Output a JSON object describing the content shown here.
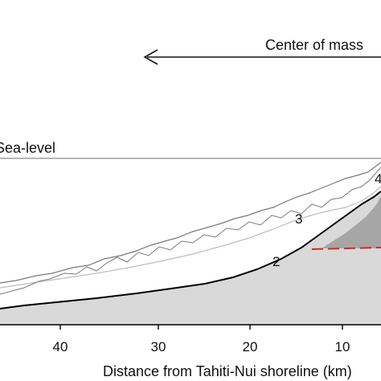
{
  "annotations": {
    "center_of_mass": "Center of mass",
    "sea_level": "Sea-level",
    "profile_2": "2",
    "profile_3": "3",
    "profile_4": "4"
  },
  "x_axis": {
    "label": "Distance from Tahiti-Nui shoreline (km)",
    "reversed": true,
    "ticks": [
      "40",
      "30",
      "20",
      "10"
    ]
  },
  "colors": {
    "seafloor_fill": "#d9d9d9",
    "island_flank_fill": "#a6a6a6",
    "profile_black": "#000000",
    "profile_grey": "#7a7a7a",
    "profile_light": "#bdbdbd",
    "marker_dash": "#d9261c",
    "sea_level_line": "#8c8c8c"
  }
}
